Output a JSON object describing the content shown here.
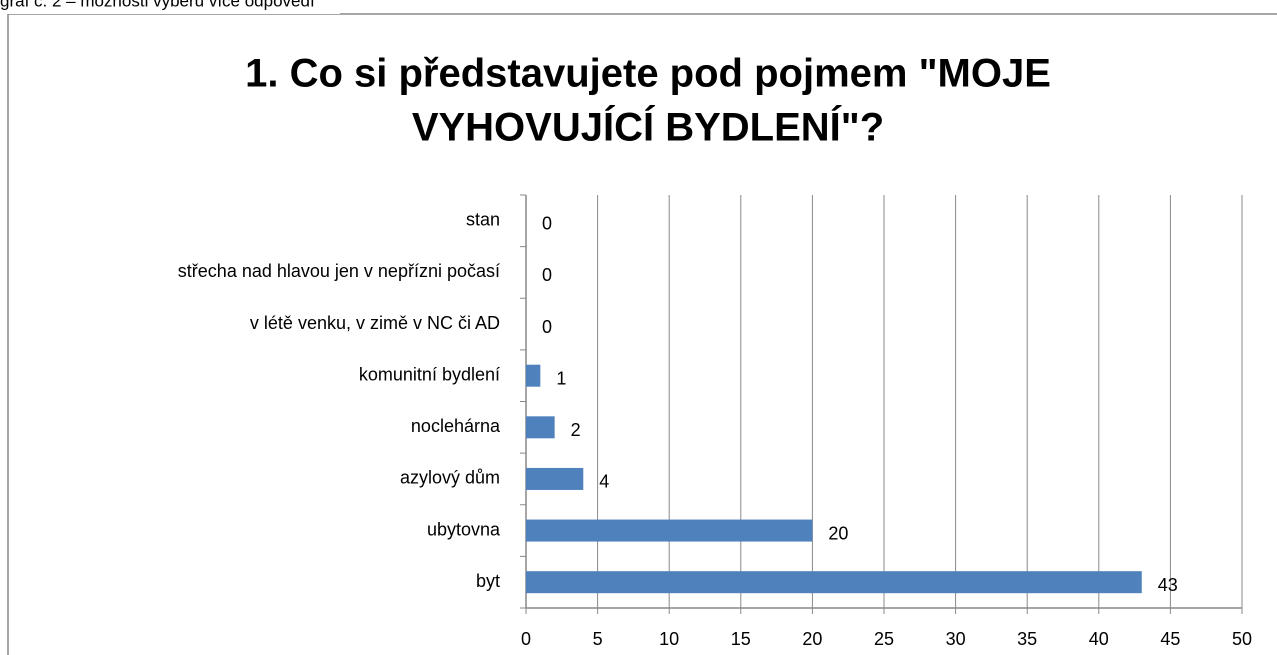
{
  "caption": "graf č. 2 – možnosti výběru více odpovědí",
  "chart_data": {
    "type": "barh",
    "title": [
      "1.      Co si představujete pod pojmem \"MOJE",
      "VYHOVUJÍCÍ BYDLENÍ\"?"
    ],
    "categories": [
      "stan",
      "střecha nad hlavou jen v nepřízni počasí",
      "v létě venku, v zimě v NC či AD",
      "komunitní bydlení ",
      "noclehárna",
      "azylový dům",
      "ubytovna",
      "byt"
    ],
    "values": [
      0,
      0,
      0,
      1,
      2,
      4,
      20,
      43
    ],
    "color": "#4f81bd",
    "xlim": [
      0,
      50
    ],
    "xticks": [
      0,
      5,
      10,
      15,
      20,
      25,
      30,
      35,
      40,
      45,
      50
    ],
    "grid": true
  }
}
